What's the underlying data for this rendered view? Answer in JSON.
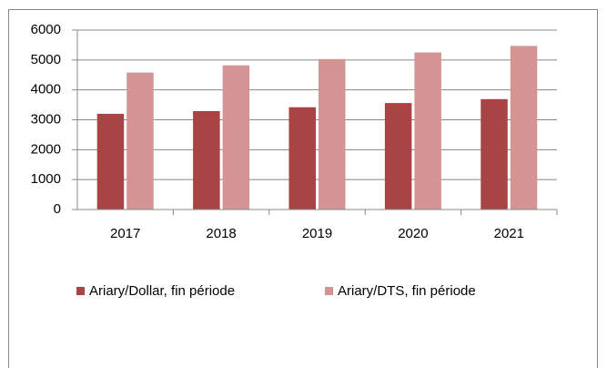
{
  "chart_data": {
    "type": "bar",
    "categories": [
      "2017",
      "2018",
      "2019",
      "2020",
      "2021"
    ],
    "series": [
      {
        "name": "Ariary/Dollar, fin période",
        "color": "#a84444",
        "values": [
          3200,
          3290,
          3420,
          3560,
          3690
        ]
      },
      {
        "name": "Ariary/DTS, fin période",
        "color": "#d49494",
        "values": [
          4580,
          4820,
          5030,
          5250,
          5470
        ]
      }
    ],
    "ylim": [
      0,
      6000
    ],
    "yticks": [
      0,
      1000,
      2000,
      3000,
      4000,
      5000,
      6000
    ],
    "grid": true,
    "legend": "bottom"
  }
}
